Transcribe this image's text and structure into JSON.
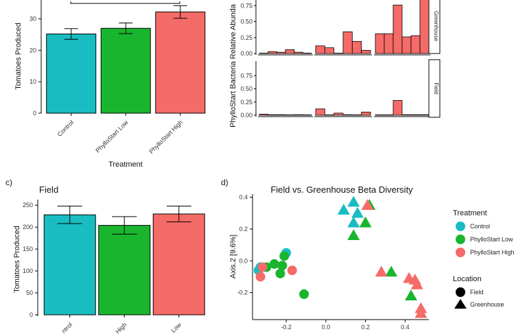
{
  "chart_data": [
    {
      "panel": "a",
      "type": "bar",
      "title": "",
      "xlabel": "Treatment",
      "ylabel": "Tomatoes Produced",
      "categories": [
        "Control",
        "PhylloStart Low",
        "PhylloStart High"
      ],
      "values": [
        25.2,
        27.0,
        32.2
      ],
      "errors": [
        1.7,
        1.7,
        2.0
      ],
      "ylim": [
        0,
        36
      ],
      "yticks": [
        0,
        10,
        20,
        30
      ],
      "colors": [
        "#19bdc1",
        "#1ab52f",
        "#f46b67"
      ],
      "grid": false
    },
    {
      "panel": "b",
      "type": "bar",
      "title": "",
      "ylabel": "PhylloStart Bacteria Relative Abundance",
      "ylabel_visible": "PhylloStart Bacteria Relative Abunda",
      "yticks_top": [
        "0.00",
        "0.25",
        "0.50",
        "0.75"
      ],
      "yticks_bottom": [
        "0.00",
        "0.25",
        "0.50",
        "0.75"
      ],
      "ylim": [
        0,
        1
      ],
      "facets": [
        {
          "strip": "Greenhouse",
          "groups": [
            [
              0.0,
              0.03,
              0.02,
              0.06,
              0.02,
              0.0
            ],
            [
              0.12,
              0.09,
              0.0,
              0.34,
              0.19,
              0.05
            ],
            [
              0.31,
              0.31,
              0.76,
              0.26,
              0.28,
              0.93
            ]
          ]
        },
        {
          "strip": "Field",
          "groups": [
            [
              0.02,
              0.01,
              0.01,
              0.0,
              0.01,
              0.0
            ],
            [
              0.12,
              0.0,
              0.04,
              0.01,
              0.0,
              0.06
            ],
            [
              0.0,
              0.0,
              0.28,
              0.01,
              0.01,
              0.01
            ]
          ]
        }
      ],
      "color": "#f46b67",
      "grid": false
    },
    {
      "panel": "c",
      "type": "bar",
      "title": "Field",
      "xlabel": "",
      "ylabel": "Tomatoes Produced",
      "categories": [
        "Control",
        "High",
        "Low"
      ],
      "tick_labels_visible": [
        "ntrol",
        "High",
        "Low"
      ],
      "values": [
        228,
        204,
        230
      ],
      "errors": [
        20,
        20,
        18
      ],
      "ylim": [
        0,
        255
      ],
      "yticks": [
        0,
        50,
        100,
        150,
        200,
        250
      ],
      "colors": [
        "#19bdc1",
        "#1ab52f",
        "#f46b67"
      ],
      "grid": false
    },
    {
      "panel": "d",
      "type": "scatter",
      "title": "Field vs. Greenhouse Beta Diversity",
      "xlabel": "",
      "ylabel": "Axis.2   [9.6%]",
      "xlim": [
        -0.37,
        0.52
      ],
      "ylim": [
        -0.37,
        0.42
      ],
      "xticks": [
        "-0.2",
        "0.0",
        "0.2",
        "0.4"
      ],
      "xtick_values": [
        -0.2,
        0.0,
        0.2,
        0.4
      ],
      "yticks": [
        "-0.2",
        "0.0",
        "0.2",
        "0.4"
      ],
      "ytick_values": [
        -0.2,
        0.0,
        0.2,
        0.4
      ],
      "points": [
        {
          "x": -0.34,
          "y": -0.06,
          "t": "Control",
          "l": "Field"
        },
        {
          "x": -0.2,
          "y": 0.05,
          "t": "Control",
          "l": "Field"
        },
        {
          "x": -0.33,
          "y": -0.04,
          "t": "Control",
          "l": "Field"
        },
        {
          "x": -0.3,
          "y": -0.04,
          "t": "PhylloStart Low",
          "l": "Field"
        },
        {
          "x": -0.21,
          "y": 0.03,
          "t": "PhylloStart Low",
          "l": "Field"
        },
        {
          "x": -0.22,
          "y": -0.03,
          "t": "PhylloStart Low",
          "l": "Field"
        },
        {
          "x": -0.26,
          "y": -0.02,
          "t": "PhylloStart Low",
          "l": "Field"
        },
        {
          "x": -0.23,
          "y": -0.08,
          "t": "PhylloStart Low",
          "l": "Field"
        },
        {
          "x": -0.11,
          "y": -0.21,
          "t": "PhylloStart Low",
          "l": "Field"
        },
        {
          "x": -0.33,
          "y": -0.1,
          "t": "PhylloStart High",
          "l": "Field"
        },
        {
          "x": -0.32,
          "y": -0.04,
          "t": "PhylloStart High",
          "l": "Field"
        },
        {
          "x": -0.17,
          "y": -0.06,
          "t": "PhylloStart High",
          "l": "Field"
        },
        {
          "x": 0.14,
          "y": 0.37,
          "t": "Control",
          "l": "Greenhouse"
        },
        {
          "x": 0.09,
          "y": 0.32,
          "t": "Control",
          "l": "Greenhouse"
        },
        {
          "x": 0.16,
          "y": 0.3,
          "t": "Control",
          "l": "Greenhouse"
        },
        {
          "x": 0.14,
          "y": 0.24,
          "t": "Control",
          "l": "Greenhouse"
        },
        {
          "x": 0.22,
          "y": 0.35,
          "t": "PhylloStart Low",
          "l": "Greenhouse"
        },
        {
          "x": 0.2,
          "y": 0.24,
          "t": "PhylloStart Low",
          "l": "Greenhouse"
        },
        {
          "x": 0.14,
          "y": 0.16,
          "t": "PhylloStart Low",
          "l": "Greenhouse"
        },
        {
          "x": 0.33,
          "y": -0.07,
          "t": "PhylloStart Low",
          "l": "Greenhouse"
        },
        {
          "x": 0.43,
          "y": -0.22,
          "t": "PhylloStart Low",
          "l": "Greenhouse"
        },
        {
          "x": 0.21,
          "y": 0.35,
          "t": "PhylloStart High",
          "l": "Greenhouse"
        },
        {
          "x": 0.28,
          "y": -0.07,
          "t": "PhylloStart High",
          "l": "Greenhouse"
        },
        {
          "x": 0.42,
          "y": -0.11,
          "t": "PhylloStart High",
          "l": "Greenhouse"
        },
        {
          "x": 0.45,
          "y": -0.12,
          "t": "PhylloStart High",
          "l": "Greenhouse"
        },
        {
          "x": 0.46,
          "y": -0.15,
          "t": "PhylloStart High",
          "l": "Greenhouse"
        },
        {
          "x": 0.48,
          "y": -0.3,
          "t": "PhylloStart High",
          "l": "Greenhouse"
        },
        {
          "x": 0.48,
          "y": -0.33,
          "t": "PhylloStart High",
          "l": "Greenhouse"
        }
      ],
      "legend": {
        "placement": "right",
        "treatment_title": "Treatment",
        "treatments": [
          {
            "label": "Control",
            "color": "#19bdc1"
          },
          {
            "label": "PhylloStart Low",
            "color": "#1ab52f"
          },
          {
            "label": "PhylloStart High",
            "color": "#f46b67"
          }
        ],
        "location_title": "Location",
        "locations": [
          {
            "label": "Field",
            "shape": "circle"
          },
          {
            "label": "Greenhouse",
            "shape": "triangle"
          }
        ]
      },
      "grid": false
    }
  ],
  "panel_labels": {
    "c": "c)",
    "d": "d)"
  }
}
